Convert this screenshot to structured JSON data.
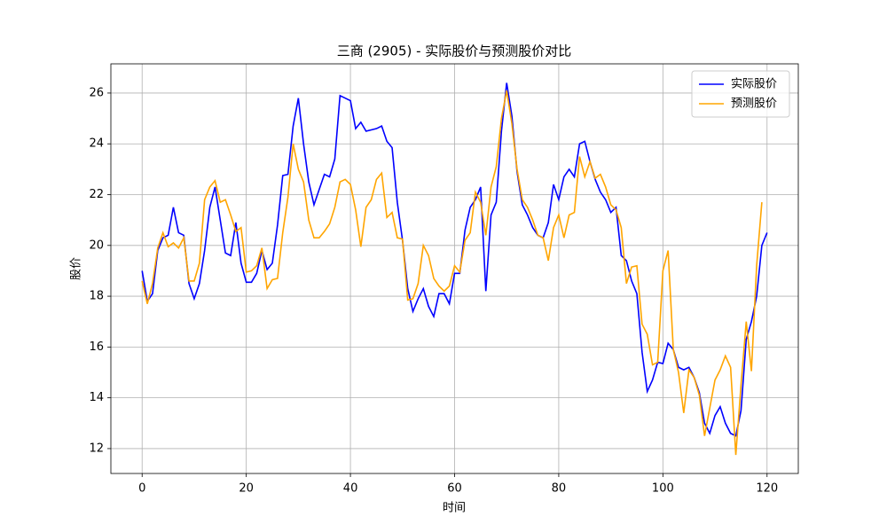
{
  "chart_data": {
    "type": "line",
    "title": "三商 (2905) - 实际股价与预测股价对比",
    "xlabel": "时间",
    "ylabel": "股价",
    "x": [
      0,
      1,
      2,
      3,
      4,
      5,
      6,
      7,
      8,
      9,
      10,
      11,
      12,
      13,
      14,
      15,
      16,
      17,
      18,
      19,
      20,
      21,
      22,
      23,
      24,
      25,
      26,
      27,
      28,
      29,
      30,
      31,
      32,
      33,
      34,
      35,
      36,
      37,
      38,
      39,
      40,
      41,
      42,
      43,
      44,
      45,
      46,
      47,
      48,
      49,
      50,
      51,
      52,
      53,
      54,
      55,
      56,
      57,
      58,
      59,
      60,
      61,
      62,
      63,
      64,
      65,
      66,
      67,
      68,
      69,
      70,
      71,
      72,
      73,
      74,
      75,
      76,
      77,
      78,
      79,
      80,
      81,
      82,
      83,
      84,
      85,
      86,
      87,
      88,
      89,
      90,
      91,
      92,
      93,
      94,
      95,
      96,
      97,
      98,
      99,
      100,
      101,
      102,
      103,
      104,
      105,
      106,
      107,
      108,
      109,
      110,
      111,
      112,
      113,
      114,
      115,
      116,
      117,
      118,
      119,
      120
    ],
    "series": [
      {
        "name": "实际股价",
        "color": "#0000ff",
        "values": [
          19.0,
          17.8,
          18.1,
          19.8,
          20.3,
          20.4,
          21.5,
          20.5,
          20.4,
          18.5,
          17.9,
          18.5,
          19.8,
          21.5,
          22.3,
          21.0,
          19.7,
          19.6,
          20.9,
          19.3,
          18.55,
          18.55,
          18.9,
          19.8,
          19.05,
          19.3,
          20.8,
          22.75,
          22.8,
          24.7,
          25.8,
          24.0,
          22.5,
          21.6,
          22.2,
          22.8,
          22.7,
          23.4,
          25.9,
          25.8,
          25.7,
          24.6,
          24.85,
          24.5,
          24.55,
          24.6,
          24.7,
          24.1,
          23.85,
          21.7,
          20.2,
          18.3,
          17.4,
          17.9,
          18.3,
          17.6,
          17.2,
          18.1,
          18.1,
          17.7,
          18.9,
          18.9,
          20.6,
          21.5,
          21.8,
          22.3,
          18.2,
          21.2,
          21.7,
          24.5,
          26.4,
          25.1,
          22.9,
          21.6,
          21.2,
          20.7,
          20.4,
          20.3,
          20.9,
          22.4,
          21.8,
          22.7,
          23.0,
          22.7,
          24.0,
          24.1,
          23.3,
          22.6,
          22.1,
          21.8,
          21.3,
          21.5,
          19.6,
          19.4,
          18.6,
          18.1,
          15.8,
          14.25,
          14.7,
          15.4,
          15.35,
          16.15,
          15.9,
          15.2,
          15.1,
          15.2,
          14.8,
          14.2,
          13.0,
          12.6,
          13.3,
          13.65,
          13.0,
          12.6,
          12.5,
          13.5,
          16.3,
          17.0,
          18.0,
          20.0,
          20.5
        ]
      },
      {
        "name": "预测股价",
        "color": "#ffa500",
        "values": [
          18.6,
          17.7,
          18.5,
          19.9,
          20.5,
          19.95,
          20.1,
          19.9,
          20.3,
          18.6,
          18.6,
          19.3,
          21.8,
          22.3,
          22.55,
          21.7,
          21.8,
          21.2,
          20.55,
          20.7,
          18.95,
          19.0,
          19.2,
          19.9,
          18.3,
          18.65,
          18.7,
          20.5,
          21.9,
          24.0,
          23.0,
          22.5,
          21.0,
          20.3,
          20.3,
          20.55,
          20.85,
          21.5,
          22.5,
          22.6,
          22.4,
          21.4,
          19.95,
          21.5,
          21.8,
          22.6,
          22.85,
          21.1,
          21.3,
          20.3,
          20.25,
          17.85,
          17.9,
          18.5,
          20.0,
          19.6,
          18.7,
          18.4,
          18.2,
          18.4,
          19.2,
          18.95,
          20.2,
          20.5,
          22.1,
          21.7,
          20.4,
          22.3,
          23.1,
          25.0,
          26.1,
          24.8,
          23.0,
          21.8,
          21.5,
          21.0,
          20.4,
          20.3,
          19.4,
          20.7,
          21.2,
          20.3,
          21.2,
          21.3,
          23.5,
          22.7,
          23.3,
          22.65,
          22.8,
          22.3,
          21.6,
          21.4,
          20.7,
          18.5,
          19.15,
          19.2,
          16.9,
          16.5,
          15.3,
          15.4,
          19.0,
          19.8,
          15.9,
          15.0,
          13.4,
          15.1,
          14.8,
          14.1,
          12.5,
          13.6,
          14.7,
          15.1,
          15.65,
          15.2,
          11.75,
          14.5,
          17.0,
          15.05,
          19.2,
          21.7,
          null
        ]
      }
    ],
    "xlim": [
      -6,
      126
    ],
    "ylim": [
      11.02,
      27.15
    ],
    "xticks": [
      0,
      20,
      40,
      60,
      80,
      100,
      120
    ],
    "yticks": [
      12,
      14,
      16,
      18,
      20,
      22,
      24,
      26
    ],
    "grid": true,
    "legend": "upper right"
  }
}
